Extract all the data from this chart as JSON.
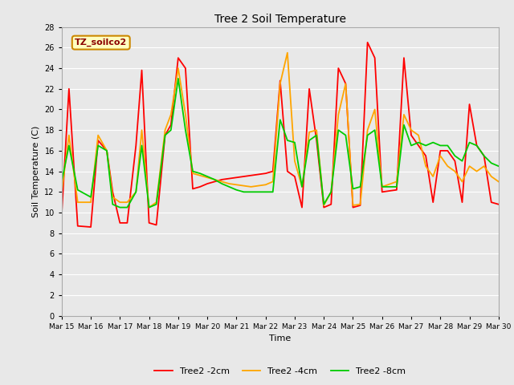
{
  "title": "Tree 2 Soil Temperature",
  "xlabel": "Time",
  "ylabel": "Soil Temperature (C)",
  "annotation": "TZ_soilco2",
  "ylim": [
    0,
    28
  ],
  "yticks": [
    0,
    2,
    4,
    6,
    8,
    10,
    12,
    14,
    16,
    18,
    20,
    22,
    24,
    26,
    28
  ],
  "xtick_labels": [
    "Mar 15",
    "Mar 16",
    "Mar 17",
    "Mar 18",
    "Mar 19",
    "Mar 20",
    "Mar 21",
    "Mar 22",
    "Mar 23",
    "Mar 24",
    "Mar 25",
    "Mar 26",
    "Mar 27",
    "Mar 28",
    "Mar 29",
    "Mar 30"
  ],
  "background_color": "#e8e8e8",
  "grid_color": "#ffffff",
  "line_colors": {
    "2cm": "#ff0000",
    "4cm": "#ffa500",
    "8cm": "#00cc00"
  },
  "line_width": 1.3,
  "x_2cm": [
    0,
    0.25,
    0.55,
    1.0,
    1.25,
    1.55,
    1.75,
    2.0,
    2.25,
    2.55,
    2.75,
    3.0,
    3.25,
    3.55,
    3.75,
    4.0,
    4.25,
    4.5,
    4.75,
    5.0,
    5.25,
    5.5,
    5.75,
    6.0,
    6.25,
    6.5,
    6.75,
    7.0,
    7.25,
    7.5,
    7.75,
    8.0,
    8.25,
    8.5,
    8.75,
    9.0,
    9.25,
    9.5,
    9.75,
    10.0,
    10.25,
    10.5,
    10.75,
    11.0,
    11.5,
    11.75,
    12.0,
    12.25,
    12.5,
    12.75,
    13.0,
    13.25,
    13.5,
    13.75,
    14.0,
    14.25,
    14.5,
    14.75,
    15.0
  ],
  "y_2cm": [
    9.8,
    22.0,
    8.7,
    8.6,
    17.0,
    16.0,
    12.0,
    9.0,
    9.0,
    16.5,
    23.8,
    9.0,
    8.8,
    17.5,
    18.5,
    25.0,
    24.0,
    12.3,
    12.5,
    12.8,
    13.0,
    13.2,
    13.3,
    13.4,
    13.5,
    13.6,
    13.7,
    13.8,
    14.0,
    22.8,
    14.0,
    13.5,
    10.5,
    22.0,
    17.0,
    10.5,
    10.8,
    24.0,
    22.5,
    10.5,
    10.7,
    26.5,
    25.0,
    12.0,
    12.2,
    25.0,
    17.5,
    16.5,
    15.5,
    11.0,
    16.0,
    16.0,
    15.0,
    11.0,
    20.5,
    16.5,
    15.5,
    11.0,
    10.8
  ],
  "x_4cm": [
    0,
    0.25,
    0.55,
    1.0,
    1.25,
    1.55,
    1.75,
    2.0,
    2.25,
    2.55,
    2.75,
    3.0,
    3.25,
    3.55,
    3.75,
    4.0,
    4.25,
    4.5,
    4.75,
    5.0,
    5.25,
    5.5,
    5.75,
    6.0,
    6.25,
    6.5,
    6.75,
    7.0,
    7.25,
    7.5,
    7.75,
    8.0,
    8.25,
    8.5,
    8.75,
    9.0,
    9.25,
    9.5,
    9.75,
    10.0,
    10.25,
    10.5,
    10.75,
    11.0,
    11.5,
    11.75,
    12.0,
    12.25,
    12.5,
    12.75,
    13.0,
    13.25,
    13.5,
    13.75,
    14.0,
    14.25,
    14.5,
    14.75,
    15.0
  ],
  "y_4cm": [
    12.0,
    17.5,
    11.0,
    11.0,
    17.5,
    16.0,
    11.5,
    11.0,
    11.0,
    12.0,
    18.0,
    10.5,
    11.0,
    18.0,
    19.5,
    24.0,
    19.5,
    13.8,
    13.6,
    13.4,
    13.2,
    13.0,
    12.8,
    12.7,
    12.6,
    12.5,
    12.6,
    12.7,
    13.0,
    22.5,
    25.5,
    15.0,
    12.5,
    17.8,
    18.0,
    10.7,
    12.0,
    19.5,
    22.5,
    10.7,
    10.8,
    18.0,
    20.0,
    12.5,
    13.0,
    19.5,
    18.0,
    17.5,
    14.5,
    13.5,
    15.5,
    14.5,
    14.0,
    13.0,
    14.5,
    14.0,
    14.5,
    13.5,
    13.0
  ],
  "x_8cm": [
    0,
    0.25,
    0.55,
    1.0,
    1.25,
    1.55,
    1.75,
    2.0,
    2.25,
    2.55,
    2.75,
    3.0,
    3.25,
    3.55,
    3.75,
    4.0,
    4.25,
    4.5,
    4.75,
    5.0,
    5.25,
    5.5,
    5.75,
    6.0,
    6.25,
    6.5,
    6.75,
    7.0,
    7.25,
    7.5,
    7.75,
    8.0,
    8.25,
    8.5,
    8.75,
    9.0,
    9.25,
    9.5,
    9.75,
    10.0,
    10.25,
    10.5,
    10.75,
    11.0,
    11.5,
    11.75,
    12.0,
    12.25,
    12.5,
    12.75,
    13.0,
    13.25,
    13.5,
    13.75,
    14.0,
    14.25,
    14.5,
    14.75,
    15.0
  ],
  "y_8cm": [
    13.0,
    16.5,
    12.2,
    11.5,
    16.5,
    16.0,
    10.8,
    10.5,
    10.5,
    12.0,
    16.5,
    10.5,
    10.8,
    17.5,
    18.0,
    23.0,
    18.0,
    14.0,
    13.8,
    13.5,
    13.2,
    12.8,
    12.5,
    12.2,
    12.0,
    12.0,
    12.0,
    12.0,
    12.0,
    19.0,
    17.0,
    16.8,
    12.5,
    17.0,
    17.5,
    10.8,
    12.0,
    18.0,
    17.5,
    12.3,
    12.5,
    17.5,
    18.0,
    12.5,
    12.5,
    18.5,
    16.5,
    16.8,
    16.5,
    16.8,
    16.5,
    16.5,
    15.5,
    15.0,
    16.8,
    16.5,
    15.5,
    14.8,
    14.5
  ]
}
